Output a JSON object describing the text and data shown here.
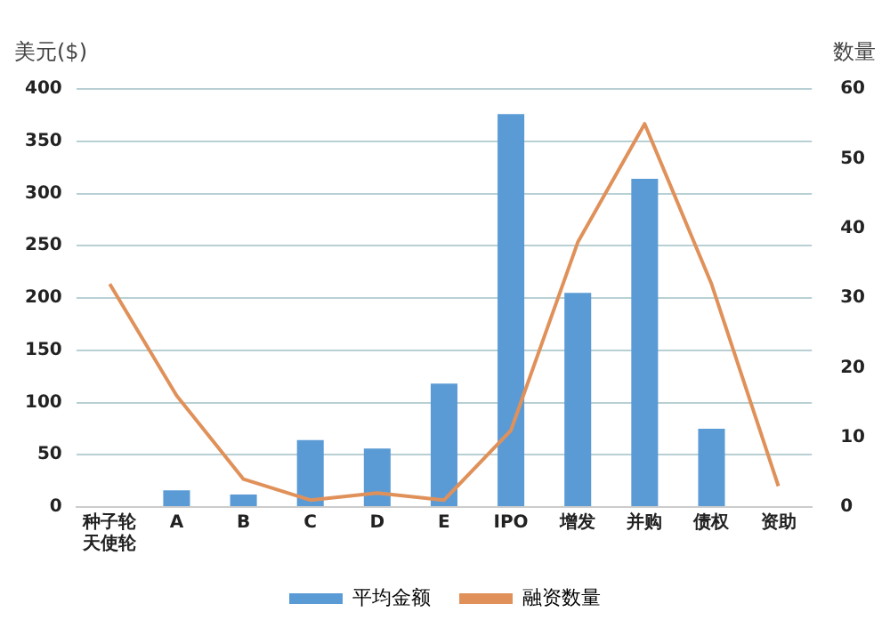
{
  "chart_data": {
    "type": "bar",
    "ylabel": "美元($)",
    "y2label": "数量",
    "categories": [
      "种子轮天使轮",
      "A",
      "B",
      "C",
      "D",
      "E",
      "IPO",
      "增发",
      "并购",
      "债权",
      "资助"
    ],
    "series": [
      {
        "name": "平均金额",
        "color": "#5b9bd5",
        "values": [
          0,
          16,
          12,
          64,
          56,
          118,
          376,
          205,
          314,
          75,
          null
        ]
      },
      {
        "name": "融资数量",
        "type": "line",
        "axis": "y2",
        "color": "#e0915a",
        "values": [
          32,
          16,
          4,
          1,
          2,
          1,
          11,
          38,
          55,
          32,
          3
        ]
      }
    ],
    "ylim": [
      0,
      400
    ],
    "yticks": [
      0,
      50,
      100,
      150,
      200,
      250,
      300,
      350,
      400
    ],
    "y2lim": [
      0,
      60
    ],
    "y2ticks": [
      0,
      10,
      20,
      30,
      40,
      50,
      60
    ],
    "grid": "y",
    "legend": "bottom",
    "marker": "none"
  }
}
